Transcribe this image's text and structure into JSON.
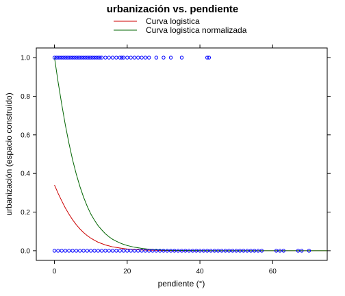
{
  "chart_data": {
    "type": "scatter",
    "title": "urbanización vs. pendiente",
    "xlabel": "pendiente (°)",
    "ylabel": "urbanización (espacio construido)",
    "xlim": [
      -5,
      75
    ],
    "ylim": [
      -0.05,
      1.05
    ],
    "x_ticks": [
      0,
      20,
      40,
      60
    ],
    "y_ticks": [
      0.0,
      0.2,
      0.4,
      0.6,
      0.8,
      1.0
    ],
    "x_tick_labels": [
      "0",
      "20",
      "40",
      "60"
    ],
    "y_tick_labels": [
      "0.0",
      "0.2",
      "0.4",
      "0.6",
      "0.8",
      "1.0"
    ],
    "grid": false,
    "legend_position": "top",
    "legend": [
      {
        "label": "Curva logistica",
        "color": "#cc0000"
      },
      {
        "label": "Curva logistica normalizada",
        "color": "#006400"
      }
    ],
    "points": {
      "color": "#0000ff",
      "marker": "open-circle",
      "y1_x": [
        0,
        0.5,
        1,
        1.5,
        2,
        2.5,
        3,
        3.5,
        4,
        4.5,
        5,
        5.5,
        6,
        6.5,
        7,
        7.5,
        8,
        8.5,
        9,
        9.5,
        10,
        10.5,
        11,
        11.5,
        12,
        12.5,
        13,
        14,
        15,
        16,
        17,
        18,
        18.5,
        19,
        20,
        21,
        22,
        23,
        24,
        25,
        26,
        28,
        30,
        32,
        35,
        42,
        42.5
      ],
      "y0_x": [
        0,
        1,
        2,
        3,
        4,
        5,
        6,
        7,
        8,
        9,
        10,
        11,
        12,
        13,
        14,
        15,
        16,
        17,
        18,
        19,
        20,
        21,
        22,
        23,
        24,
        25,
        26,
        27,
        28,
        29,
        30,
        31,
        32,
        33,
        34,
        35,
        36,
        37,
        38,
        39,
        40,
        41,
        42,
        43,
        44,
        45,
        46,
        47,
        48,
        49,
        50,
        51,
        52,
        53,
        54,
        55,
        56,
        57,
        61,
        62,
        63,
        67,
        68,
        70
      ]
    },
    "series": [
      {
        "name": "Curva logistica",
        "color": "#cc0000",
        "x": [
          0,
          1,
          2,
          3,
          4,
          5,
          6,
          7,
          8,
          9,
          10,
          11,
          12,
          13,
          14,
          15,
          16,
          17,
          18,
          19,
          20,
          22,
          24,
          26,
          28,
          30,
          35,
          40,
          45,
          50,
          55,
          60,
          65,
          70,
          75
        ],
        "y": [
          0.34,
          0.297,
          0.258,
          0.221,
          0.189,
          0.16,
          0.135,
          0.113,
          0.094,
          0.078,
          0.065,
          0.054,
          0.044,
          0.037,
          0.03,
          0.025,
          0.02,
          0.017,
          0.014,
          0.011,
          0.009,
          0.006,
          0.004,
          0.003,
          0.002,
          0.001,
          0.0005,
          0.0002,
          0.0001,
          0,
          0,
          0,
          0,
          0,
          0
        ]
      },
      {
        "name": "Curva logistica normalizada",
        "color": "#006400",
        "x": [
          0,
          1,
          2,
          3,
          4,
          5,
          6,
          7,
          8,
          9,
          10,
          11,
          12,
          13,
          14,
          15,
          16,
          17,
          18,
          19,
          20,
          22,
          24,
          26,
          28,
          30,
          35,
          40,
          45,
          50,
          55,
          60,
          65,
          70,
          75
        ],
        "y": [
          1.0,
          0.873,
          0.758,
          0.65,
          0.555,
          0.47,
          0.397,
          0.332,
          0.277,
          0.23,
          0.19,
          0.158,
          0.13,
          0.108,
          0.088,
          0.072,
          0.059,
          0.049,
          0.04,
          0.033,
          0.027,
          0.018,
          0.012,
          0.008,
          0.005,
          0.003,
          0.0015,
          0.0006,
          0.0002,
          0.0001,
          0,
          0,
          0,
          0,
          0
        ]
      }
    ]
  }
}
